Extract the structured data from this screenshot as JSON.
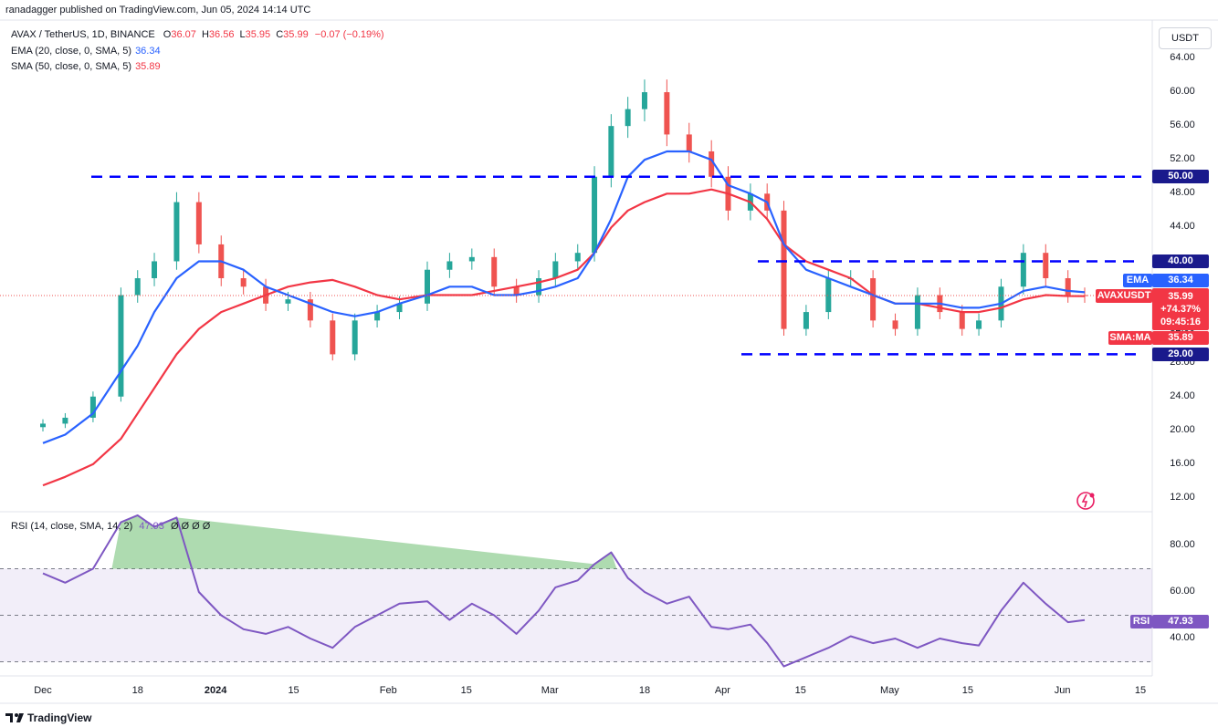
{
  "publisher_line": "ranadagger published on TradingView.com, Jun 05, 2024 14:14 UTC",
  "legend": {
    "symbol": "AVAX / TetherUS, 1D, BINANCE",
    "o_label": "O",
    "o": "36.07",
    "h_label": "H",
    "h": "36.56",
    "l_label": "L",
    "l": "35.95",
    "c_label": "C",
    "c": "35.99",
    "change": "−0.07 (−0.19%)",
    "ema_label": "EMA (20, close, 0, SMA, 5)",
    "ema_value": "36.34",
    "sma_label": "SMA (50, close, 0, SMA, 5)",
    "sma_value": "35.89"
  },
  "currency": "USDT",
  "price_axis_ticks": [
    "64.00",
    "60.00",
    "56.00",
    "52.00",
    "48.00",
    "44.00",
    "40.00",
    "36.00",
    "32.00",
    "28.00",
    "24.00",
    "20.00",
    "16.00",
    "12.00"
  ],
  "rsi_axis_ticks": [
    "80.00",
    "60.00",
    "40.00"
  ],
  "time_axis": [
    {
      "label": "Dec",
      "strong": false
    },
    {
      "label": "18",
      "strong": false
    },
    {
      "label": "2024",
      "strong": true
    },
    {
      "label": "15",
      "strong": false
    },
    {
      "label": "Feb",
      "strong": false
    },
    {
      "label": "15",
      "strong": false
    },
    {
      "label": "Mar",
      "strong": false
    },
    {
      "label": "18",
      "strong": false
    },
    {
      "label": "Apr",
      "strong": false
    },
    {
      "label": "15",
      "strong": false
    },
    {
      "label": "May",
      "strong": false
    },
    {
      "label": "15",
      "strong": false
    },
    {
      "label": "Jun",
      "strong": false
    },
    {
      "label": "15",
      "strong": false
    }
  ],
  "tags": {
    "level_50": "50.00",
    "level_40": "40.00",
    "level_29": "29.00",
    "ema_tag": "EMA",
    "ema_value": "36.34",
    "symbol_tag": "AVAXUSDT",
    "price": "35.99",
    "pct": "+74.37%",
    "countdown": "09:45:16",
    "sma_tag": "SMA:MA",
    "sma_value": "35.89",
    "rsi_tag": "RSI",
    "rsi_value": "47.93"
  },
  "rsi_legend": {
    "label": "RSI (14, close, SMA, 14, 2)",
    "value": "47.93",
    "extras": "Ø Ø Ø Ø"
  },
  "brand": "TradingView",
  "colors": {
    "up": "#26a69a",
    "down": "#ef5350",
    "ema": "#2962ff",
    "sma": "#f23645",
    "level": "#0000ff",
    "rsi": "#7e57c2",
    "rsi_band": "rgba(126,87,194,0.10)",
    "overbought_fill": "rgba(76,175,80,0.45)"
  },
  "chart_data": {
    "type": "candlestick",
    "price_axis_ticks": [
      64,
      60,
      56,
      52,
      48,
      44,
      40,
      36,
      32,
      28,
      24,
      20,
      16,
      12
    ],
    "horizontal_levels": [
      50,
      40,
      29
    ],
    "last_price": 35.99,
    "ema20_last": 36.34,
    "sma50_last": 35.89,
    "rsi": {
      "period": 14,
      "last": 47.93,
      "upper_band": 70,
      "middle_band": 50,
      "lower_band": 30,
      "axis_ticks": [
        80,
        60,
        40
      ]
    },
    "dates": [
      "2023-12-01",
      "2023-12-05",
      "2023-12-10",
      "2023-12-15",
      "2023-12-18",
      "2023-12-21",
      "2023-12-25",
      "2023-12-29",
      "2024-01-02",
      "2024-01-06",
      "2024-01-10",
      "2024-01-14",
      "2024-01-18",
      "2024-01-22",
      "2024-01-26",
      "2024-01-30",
      "2024-02-03",
      "2024-02-08",
      "2024-02-12",
      "2024-02-16",
      "2024-02-20",
      "2024-02-24",
      "2024-02-28",
      "2024-03-02",
      "2024-03-06",
      "2024-03-09",
      "2024-03-12",
      "2024-03-15",
      "2024-03-18",
      "2024-03-22",
      "2024-03-26",
      "2024-03-30",
      "2024-04-02",
      "2024-04-06",
      "2024-04-09",
      "2024-04-12",
      "2024-04-16",
      "2024-04-20",
      "2024-04-24",
      "2024-04-28",
      "2024-05-02",
      "2024-05-06",
      "2024-05-10",
      "2024-05-14",
      "2024-05-17",
      "2024-05-21",
      "2024-05-25",
      "2024-05-29",
      "2024-06-02",
      "2024-06-05"
    ],
    "close": [
      20.8,
      21.5,
      24,
      36,
      38,
      40,
      47,
      42,
      38,
      37,
      35,
      35.5,
      33,
      29,
      33,
      34,
      35,
      39,
      40,
      40.5,
      37,
      36,
      38,
      40,
      41,
      50,
      56,
      58,
      60,
      55,
      53,
      50,
      46,
      48,
      46,
      32,
      34,
      38,
      38,
      33,
      32,
      36,
      34,
      32,
      33,
      37,
      41,
      38,
      36,
      35.99
    ],
    "ema20": [
      18.5,
      19.5,
      22,
      27,
      30,
      34,
      38,
      40,
      40,
      39,
      37,
      36,
      35,
      34,
      33.5,
      34,
      35,
      36,
      37,
      37,
      36,
      36,
      36.5,
      37,
      38,
      41,
      45,
      50,
      52,
      53,
      53,
      52,
      49,
      48,
      47,
      42,
      39,
      38,
      37,
      36,
      35,
      35,
      35,
      34.5,
      34.5,
      35,
      36.5,
      37,
      36.5,
      36.34
    ],
    "sma50": [
      13.5,
      14.5,
      16,
      19,
      22,
      25,
      29,
      32,
      34,
      35,
      36,
      37,
      37.5,
      37.8,
      37,
      36,
      35.5,
      36,
      36,
      36,
      36.5,
      37,
      37.5,
      38,
      39,
      41,
      44,
      46,
      47,
      48,
      48,
      48.5,
      48,
      47,
      45,
      42,
      40,
      39,
      38,
      36,
      35,
      35,
      34.5,
      34,
      34,
      34.5,
      35.5,
      36,
      35.9,
      35.89
    ],
    "rsi_values": [
      68,
      64,
      70,
      90,
      93,
      88,
      92,
      60,
      50,
      44,
      42,
      45,
      40,
      36,
      45,
      50,
      55,
      56,
      48,
      55,
      50,
      42,
      52,
      62,
      65,
      72,
      77,
      66,
      60,
      55,
      58,
      45,
      44,
      46,
      38,
      28,
      32,
      36,
      41,
      38,
      40,
      36,
      40,
      38,
      37,
      52,
      64,
      55,
      47,
      47.93
    ]
  }
}
